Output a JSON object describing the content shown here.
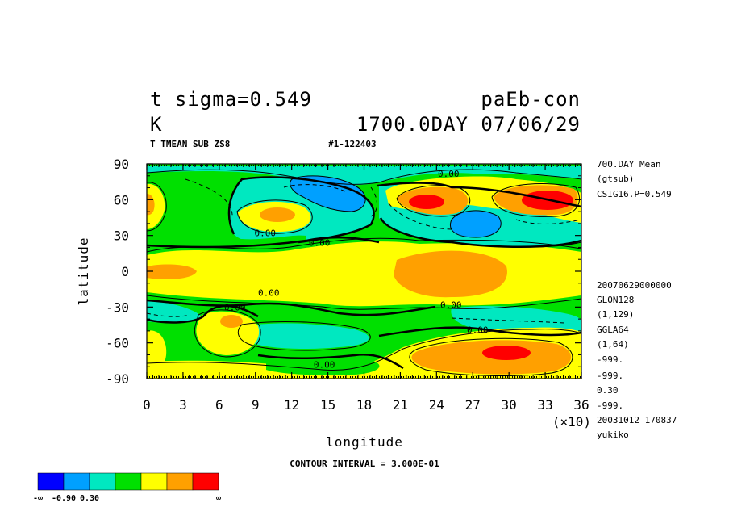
{
  "header": {
    "title_left_1": "t  sigma=0.549",
    "title_right_1": "paEb-con",
    "title_left_2": "K",
    "title_right_2": "1700.0DAY 07/06/29",
    "subtitle_left": "T TMEAN SUB ZS8",
    "subtitle_right": "#1-122403"
  },
  "side_info": {
    "top": [
      "700.DAY Mean",
      "(gtsub)",
      "CSIG16.P=0.549"
    ],
    "bottom": [
      "20070629000000",
      "GLON128",
      "(1,129)",
      "GGLA64",
      "(1,64)",
      "-999.",
      "-999.",
      "0.30",
      "-999.",
      "20031012 170837",
      "yukiko"
    ]
  },
  "chart_data": {
    "type": "contour",
    "xlabel": "longitude",
    "ylabel": "latitude",
    "x_multiplier_label": "(×10)",
    "xticks": [
      0,
      3,
      6,
      9,
      12,
      15,
      18,
      21,
      24,
      27,
      30,
      33,
      36
    ],
    "yticks": [
      90,
      60,
      30,
      0,
      -30,
      -60,
      -90
    ],
    "xlim": [
      0,
      36
    ],
    "ylim": [
      -90,
      90
    ],
    "contour_interval_text": "CONTOUR INTERVAL = 3.000E-01",
    "contour_labels": [
      {
        "text": "0.00",
        "lon": 25.0,
        "lat": 82
      },
      {
        "text": "0.00",
        "lon": 9.8,
        "lat": 32
      },
      {
        "text": "0.00",
        "lon": 14.3,
        "lat": 24
      },
      {
        "text": "0.00",
        "lon": 10.1,
        "lat": -18
      },
      {
        "text": "0.00",
        "lon": 7.3,
        "lat": -30
      },
      {
        "text": "0.00",
        "lon": 25.2,
        "lat": -28
      },
      {
        "text": "0.00",
        "lon": 27.4,
        "lat": -49
      },
      {
        "text": "0.00",
        "lon": 14.7,
        "lat": -78
      }
    ],
    "features": [
      {
        "name": "warm-core-ne1",
        "lon": 23.1,
        "lat": 59,
        "value": 1.5
      },
      {
        "name": "warm-core-ne2",
        "lon": 33.1,
        "lat": 60,
        "value": 1.5
      },
      {
        "name": "warm-core-s",
        "lon": 29.7,
        "lat": -66,
        "value": 1.5
      },
      {
        "name": "warm-blob-n",
        "lon": 10.8,
        "lat": 47,
        "value": 0.9
      },
      {
        "name": "cold-core-n1",
        "lon": 14.3,
        "lat": 72,
        "value": -1.2
      },
      {
        "name": "cold-core-n2",
        "lon": 27.1,
        "lat": 38,
        "value": -1.2
      }
    ],
    "colorbar": {
      "colors": [
        "#0000ff",
        "#00a0ff",
        "#00e8c0",
        "#00e000",
        "#ffff00",
        "#ffa000",
        "#ff0000"
      ],
      "labels": [
        "-∞",
        "-0.90",
        "0.30",
        "∞"
      ]
    }
  }
}
